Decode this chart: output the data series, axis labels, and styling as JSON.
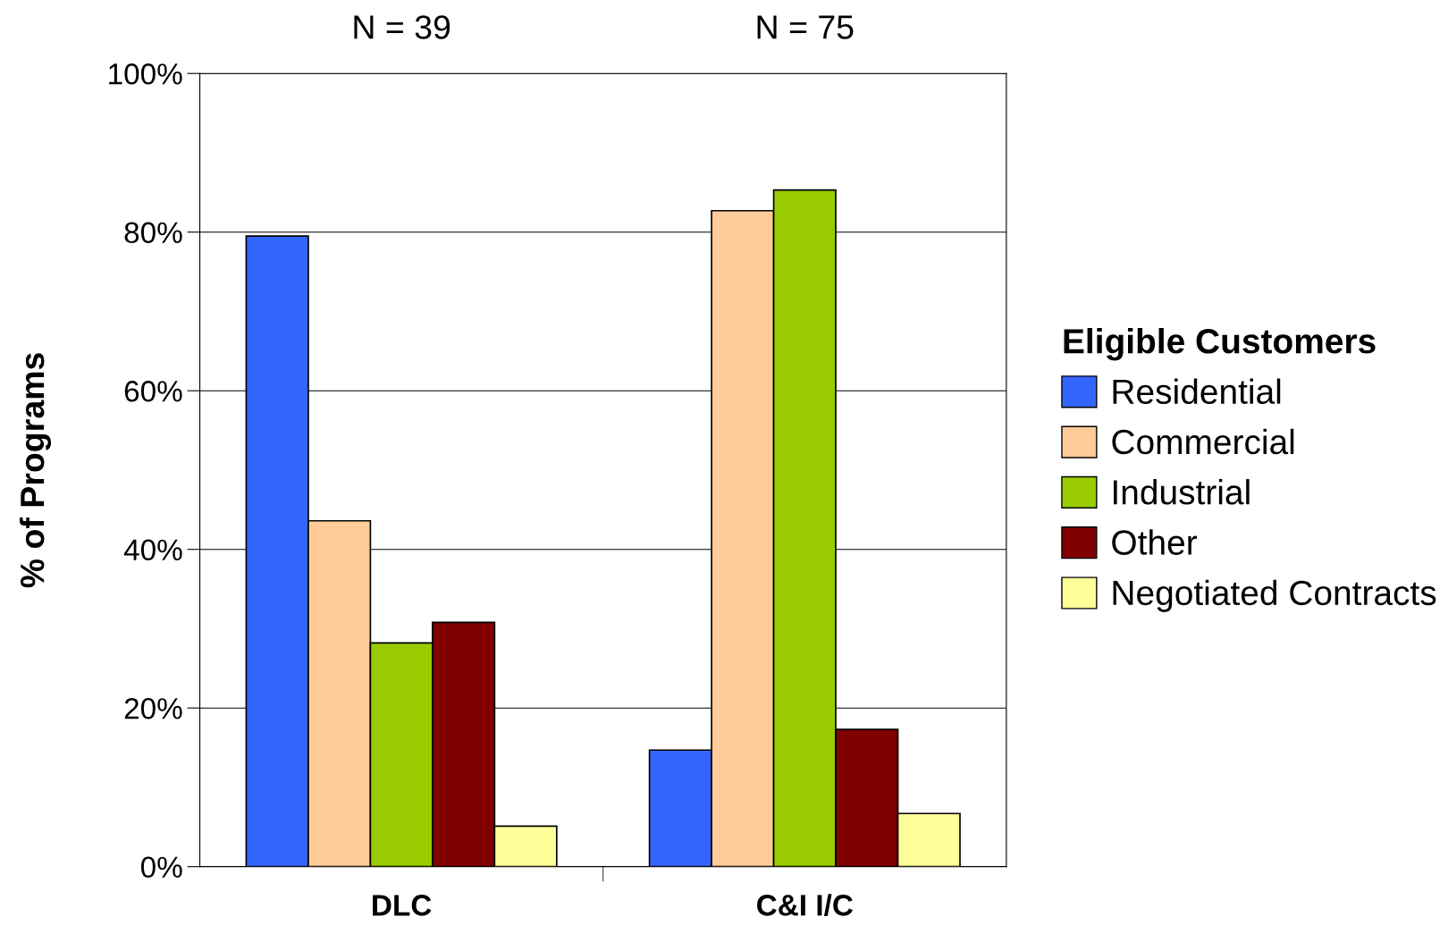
{
  "chart_data": {
    "type": "bar",
    "ylabel": "% of Programs",
    "legend_title": "Eligible Customers",
    "categories": [
      "DLC",
      "C&I I/C"
    ],
    "series": [
      {
        "name": "Residential",
        "color": "#3366ff",
        "values": [
          79.5,
          14.7
        ]
      },
      {
        "name": "Commercial",
        "color": "#ffcc99",
        "values": [
          43.6,
          82.7
        ]
      },
      {
        "name": "Industrial",
        "color": "#99cc00",
        "values": [
          28.2,
          85.3
        ]
      },
      {
        "name": "Other",
        "color": "#800000",
        "values": [
          30.8,
          17.3
        ]
      },
      {
        "name": "Negotiated Contracts",
        "color": "#ffff99",
        "values": [
          5.1,
          6.7
        ]
      }
    ],
    "ylim": [
      0,
      100
    ],
    "yticks": [
      {
        "value": 0,
        "label": "0%"
      },
      {
        "value": 20,
        "label": "20%"
      },
      {
        "value": 40,
        "label": "40%"
      },
      {
        "value": 60,
        "label": "60%"
      },
      {
        "value": 80,
        "label": "80%"
      },
      {
        "value": 100,
        "label": "100%"
      }
    ],
    "annotations": [
      "N = 39",
      "N = 75"
    ],
    "grid": "y",
    "legend": "right"
  }
}
